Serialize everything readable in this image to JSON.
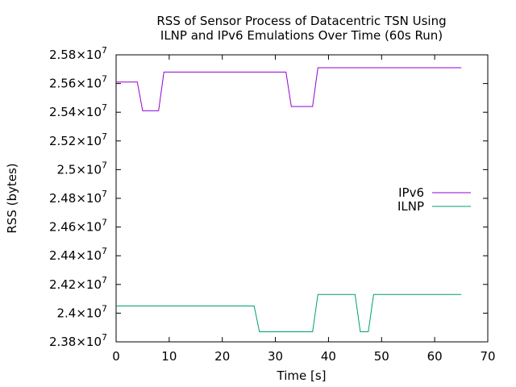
{
  "chart_data": {
    "type": "line",
    "title_lines": [
      "RSS of Sensor Process of Datacentric TSN Using",
      "ILNP and IPv6 Emulations Over Time (60s Run)"
    ],
    "xlabel": "Time [s]",
    "ylabel": "RSS (bytes)",
    "xlim": [
      0,
      70
    ],
    "ylim": [
      23800000,
      25800000
    ],
    "x_ticks": [
      0,
      10,
      20,
      30,
      40,
      50,
      60,
      70
    ],
    "y_ticks": [
      {
        "value": 23800000,
        "mant": "2.38",
        "exp": "7"
      },
      {
        "value": 24000000,
        "mant": "2.4",
        "exp": "7"
      },
      {
        "value": 24200000,
        "mant": "2.42",
        "exp": "7"
      },
      {
        "value": 24400000,
        "mant": "2.44",
        "exp": "7"
      },
      {
        "value": 24600000,
        "mant": "2.46",
        "exp": "7"
      },
      {
        "value": 24800000,
        "mant": "2.48",
        "exp": "7"
      },
      {
        "value": 25000000,
        "mant": "2.5",
        "exp": "7"
      },
      {
        "value": 25200000,
        "mant": "2.52",
        "exp": "7"
      },
      {
        "value": 25400000,
        "mant": "2.54",
        "exp": "7"
      },
      {
        "value": 25600000,
        "mant": "2.56",
        "exp": "7"
      },
      {
        "value": 25800000,
        "mant": "2.58",
        "exp": "7"
      }
    ],
    "y_tick_times": "×10",
    "grid": false,
    "legend_position": "right",
    "series": [
      {
        "name": "IPv6",
        "color": "#9400d3",
        "x": [
          0,
          4,
          5,
          8,
          9,
          32,
          33,
          37,
          38,
          65
        ],
        "y": [
          25610000,
          25610000,
          25410000,
          25410000,
          25680000,
          25680000,
          25440000,
          25440000,
          25710000,
          25710000
        ]
      },
      {
        "name": "ILNP",
        "color": "#009e73",
        "x": [
          0,
          26,
          27,
          37,
          38,
          45,
          46,
          47.5,
          48.5,
          65
        ],
        "y": [
          24050000,
          24050000,
          23870000,
          23870000,
          24130000,
          24130000,
          23870000,
          23870000,
          24130000,
          24130000
        ]
      }
    ]
  }
}
